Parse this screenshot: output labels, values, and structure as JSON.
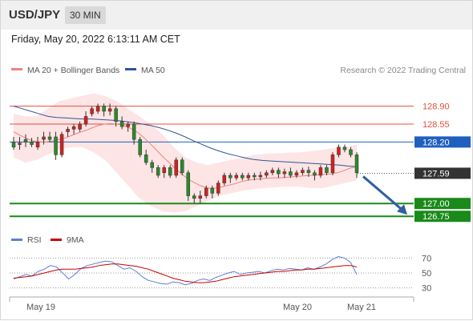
{
  "header": {
    "symbol": "USD/JPY",
    "timeframe": "30 MIN",
    "datetime": "Friday, May 20, 2022 6:13:11 AM CET"
  },
  "legend": {
    "ma20": "MA 20 + Bollinger Bands",
    "ma50": "MA 50",
    "credit": "Research © 2022 Trading Central",
    "rsi": "RSI",
    "rsi_ma": "9MA"
  },
  "colors": {
    "bull_candle": "#2a8a2a",
    "bear_candle": "#d42020",
    "ma20": "#f08080",
    "ma50": "#2f5597",
    "bollinger_fill": "#fde0e0",
    "resistance": "#e74c3c",
    "pivot": "#1f5fbf",
    "support": "#1a8a1a",
    "arrow": "#2f5f9f",
    "rsi": "#5b7fd6",
    "rsi_ma": "#cc0000"
  },
  "chart_data": [
    {
      "type": "candlestick",
      "x_labels": [
        "May 19",
        "May 20",
        "May 21"
      ],
      "price_range": [
        126.55,
        129.3
      ],
      "levels": [
        {
          "label": "128.90",
          "value": 128.9,
          "kind": "resistance"
        },
        {
          "label": "128.55",
          "value": 128.55,
          "kind": "resistance"
        },
        {
          "label": "128.20",
          "value": 128.2,
          "kind": "pivot"
        },
        {
          "label": "127.59",
          "value": 127.59,
          "kind": "last"
        },
        {
          "label": "127.00",
          "value": 127.0,
          "kind": "support"
        },
        {
          "label": "126.75",
          "value": 126.75,
          "kind": "support"
        }
      ],
      "candles": [
        [
          128.2,
          128.1,
          128.3,
          128.05
        ],
        [
          128.15,
          128.18,
          128.3,
          128.05
        ],
        [
          128.25,
          128.2,
          128.35,
          128.1
        ],
        [
          128.2,
          128.15,
          128.28,
          128.1
        ],
        [
          128.1,
          128.2,
          128.3,
          128.05
        ],
        [
          128.25,
          128.3,
          128.4,
          128.15
        ],
        [
          128.3,
          128.25,
          128.4,
          128.2
        ],
        [
          128.3,
          127.95,
          128.4,
          127.85
        ],
        [
          127.95,
          128.35,
          128.4,
          127.9
        ],
        [
          128.4,
          128.45,
          128.5,
          128.3
        ],
        [
          128.45,
          128.5,
          128.55,
          128.35
        ],
        [
          128.45,
          128.55,
          128.6,
          128.4
        ],
        [
          128.55,
          128.7,
          128.8,
          128.5
        ],
        [
          128.75,
          128.85,
          128.9,
          128.7
        ],
        [
          128.8,
          128.9,
          128.95,
          128.75
        ],
        [
          128.9,
          128.8,
          128.95,
          128.7
        ],
        [
          128.8,
          128.85,
          128.95,
          128.72
        ],
        [
          128.85,
          128.6,
          128.9,
          128.5
        ],
        [
          128.6,
          128.5,
          128.7,
          128.45
        ],
        [
          128.5,
          128.55,
          128.6,
          128.4
        ],
        [
          128.55,
          128.25,
          128.6,
          128.15
        ],
        [
          128.25,
          127.95,
          128.3,
          127.9
        ],
        [
          127.95,
          127.8,
          128.05,
          127.75
        ],
        [
          127.8,
          127.7,
          127.85,
          127.6
        ],
        [
          127.7,
          127.55,
          127.75,
          127.5
        ],
        [
          127.6,
          127.7,
          127.75,
          127.5
        ],
        [
          127.7,
          127.55,
          127.75,
          127.5
        ],
        [
          127.55,
          127.85,
          127.9,
          127.5
        ],
        [
          127.85,
          127.6,
          127.9,
          127.55
        ],
        [
          127.6,
          127.15,
          127.65,
          127.05
        ],
        [
          127.15,
          127.1,
          127.2,
          127.0
        ],
        [
          127.1,
          127.15,
          127.25,
          127.0
        ],
        [
          127.15,
          127.3,
          127.35,
          127.1
        ],
        [
          127.3,
          127.2,
          127.35,
          127.1
        ],
        [
          127.2,
          127.4,
          127.45,
          127.15
        ],
        [
          127.4,
          127.55,
          127.6,
          127.35
        ],
        [
          127.55,
          127.5,
          127.6,
          127.4
        ],
        [
          127.5,
          127.55,
          127.6,
          127.45
        ],
        [
          127.55,
          127.5,
          127.6,
          127.45
        ],
        [
          127.5,
          127.55,
          127.6,
          127.45
        ],
        [
          127.55,
          127.52,
          127.6,
          127.45
        ],
        [
          127.52,
          127.55,
          127.62,
          127.45
        ],
        [
          127.55,
          127.6,
          127.65,
          127.5
        ],
        [
          127.6,
          127.65,
          127.7,
          127.55
        ],
        [
          127.65,
          127.58,
          127.7,
          127.5
        ],
        [
          127.58,
          127.62,
          127.68,
          127.5
        ],
        [
          127.62,
          127.55,
          127.7,
          127.5
        ],
        [
          127.55,
          127.6,
          127.65,
          127.5
        ],
        [
          127.6,
          127.65,
          127.7,
          127.55
        ],
        [
          127.65,
          127.6,
          127.72,
          127.52
        ],
        [
          127.6,
          127.55,
          127.65,
          127.45
        ],
        [
          127.55,
          127.7,
          127.75,
          127.5
        ],
        [
          127.7,
          127.6,
          127.75,
          127.55
        ],
        [
          127.6,
          127.95,
          128.0,
          127.55
        ],
        [
          127.95,
          128.1,
          128.15,
          127.9
        ],
        [
          128.1,
          128.05,
          128.15,
          128.0
        ],
        [
          128.05,
          127.95,
          128.1,
          127.9
        ],
        [
          127.95,
          127.6,
          128.0,
          127.5
        ]
      ],
      "ma20": [
        128.4,
        128.33,
        128.27,
        128.22,
        128.2,
        128.2,
        128.22,
        128.25,
        128.28,
        128.33,
        128.38,
        128.42,
        128.47,
        128.52,
        128.55,
        128.56,
        128.55,
        128.52,
        128.47,
        128.4,
        128.3,
        128.18,
        128.05,
        127.92,
        127.8,
        127.68,
        127.57,
        127.47,
        127.4,
        127.34,
        127.3,
        127.3,
        127.32,
        127.35,
        127.38,
        127.42,
        127.45,
        127.47,
        127.48,
        127.49,
        127.5,
        127.5,
        127.51,
        127.52,
        127.53,
        127.54,
        127.55,
        127.56,
        127.57,
        127.58,
        127.6,
        127.64,
        127.69,
        127.72
      ],
      "ma50": [
        128.9,
        128.85,
        128.8,
        128.75,
        128.7,
        128.68,
        128.67,
        128.66,
        128.65,
        128.65,
        128.64,
        128.63,
        128.62,
        128.6,
        128.58,
        128.55,
        128.52,
        128.48,
        128.43,
        128.37,
        128.3,
        128.22,
        128.15,
        128.08,
        128.02,
        127.97,
        127.93,
        127.89,
        127.86,
        127.84,
        127.83,
        127.82,
        127.81,
        127.8,
        127.79,
        127.78,
        127.77,
        127.76,
        127.75,
        127.73,
        127.72
      ],
      "bollinger_upper": [
        128.75,
        128.7,
        128.7,
        128.85,
        129.0,
        129.05,
        129.1,
        129.15,
        129.1,
        129.0,
        128.85,
        128.7,
        128.55,
        128.35,
        128.1,
        127.9,
        127.8,
        127.75,
        127.8,
        127.85,
        127.9,
        127.95,
        127.97,
        127.98,
        127.99,
        128.0,
        128.02,
        128.05,
        128.08,
        128.1,
        128.15
      ],
      "bollinger_lower": [
        127.9,
        127.8,
        127.85,
        127.95,
        128.05,
        128.1,
        128.1,
        128.0,
        127.85,
        127.6,
        127.35,
        127.1,
        126.95,
        126.85,
        126.82,
        126.85,
        126.95,
        127.05,
        127.15,
        127.2,
        127.25,
        127.28,
        127.3,
        127.32,
        127.33,
        127.33,
        127.3,
        127.3,
        127.35,
        127.4,
        127.45
      ],
      "projection": {
        "from": 127.59,
        "to": 126.75
      }
    },
    {
      "type": "line",
      "name": "RSI",
      "y_labels": [
        "70",
        "50",
        "30"
      ],
      "y_range": [
        20,
        80
      ],
      "series": [
        {
          "name": "RSI",
          "values": [
            42,
            45,
            48,
            46,
            52,
            55,
            60,
            58,
            50,
            42,
            48,
            56,
            60,
            62,
            64,
            66,
            65,
            60,
            55,
            57,
            52,
            45,
            40,
            38,
            36,
            35,
            38,
            37,
            34,
            36,
            40,
            42,
            40,
            44,
            47,
            50,
            52,
            48,
            50,
            51,
            52,
            50,
            53,
            55,
            54,
            56,
            55,
            54,
            57,
            55,
            58,
            62,
            68,
            72,
            70,
            64,
            48
          ]
        },
        {
          "name": "9MA",
          "values": [
            43,
            44,
            45,
            46,
            48,
            50,
            52,
            54,
            55,
            55,
            55,
            56,
            57,
            58,
            60,
            61,
            62,
            62,
            61,
            60,
            59,
            57,
            55,
            52,
            49,
            46,
            43,
            41,
            39,
            38,
            37,
            37,
            38,
            39,
            41,
            43,
            45,
            46,
            47,
            48,
            49,
            50,
            51,
            52,
            52,
            53,
            54,
            54,
            55,
            55,
            56,
            57,
            58,
            59,
            60,
            60,
            58
          ]
        }
      ]
    }
  ]
}
